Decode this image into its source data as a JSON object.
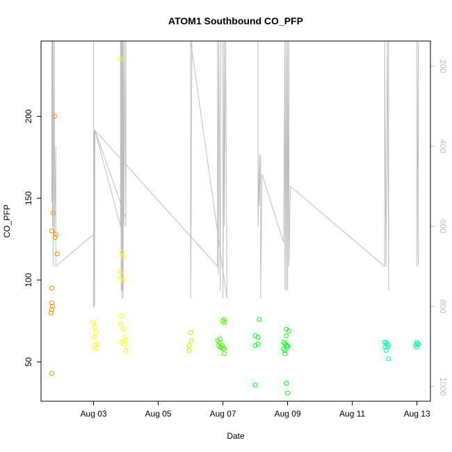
{
  "chart_data": {
    "type": "scatter",
    "title": "ATOM1 Southbound CO_PFP",
    "xlabel": "Date",
    "ylabel": "CO_PFP",
    "xlim": [
      "2016-08-01T09:00",
      "2016-08-13T10:00"
    ],
    "ylim": [
      26,
      246
    ],
    "x_ticks": [
      {
        "date": "2016-08-03T00:00",
        "label": "Aug 03"
      },
      {
        "date": "2016-08-05T00:00",
        "label": "Aug 05"
      },
      {
        "date": "2016-08-07T00:00",
        "label": "Aug 07"
      },
      {
        "date": "2016-08-09T00:00",
        "label": "Aug 09"
      },
      {
        "date": "2016-08-11T00:00",
        "label": "Aug 11"
      },
      {
        "date": "2016-08-13T00:00",
        "label": "Aug 13"
      }
    ],
    "y_ticks": [
      50,
      100,
      150,
      200
    ],
    "y2_ticks": [
      200,
      400,
      600,
      800,
      1000
    ],
    "y2lim": [
      1037,
      137
    ],
    "grid": false,
    "series": [
      {
        "color": "#ff8c00",
        "points": [
          {
            "x": "2016-08-01T19:00",
            "y": 200
          },
          {
            "x": "2016-08-01T18:00",
            "y": 141
          },
          {
            "x": "2016-08-01T17:00",
            "y": 130
          },
          {
            "x": "2016-08-01T20:00",
            "y": 128
          },
          {
            "x": "2016-08-01T19:30",
            "y": 126
          },
          {
            "x": "2016-08-01T21:00",
            "y": 116
          },
          {
            "x": "2016-08-01T17:00",
            "y": 95
          },
          {
            "x": "2016-08-01T17:00",
            "y": 86
          },
          {
            "x": "2016-08-01T17:30",
            "y": 84
          },
          {
            "x": "2016-08-01T17:00",
            "y": 82
          },
          {
            "x": "2016-08-01T16:30",
            "y": 80
          },
          {
            "x": "2016-08-01T17:00",
            "y": 43
          }
        ]
      },
      {
        "color": "#ffff00",
        "points": [
          {
            "x": "2016-08-03T00:00",
            "y": 74
          },
          {
            "x": "2016-08-03T01:00",
            "y": 71
          },
          {
            "x": "2016-08-03T02:00",
            "y": 68
          },
          {
            "x": "2016-08-03T00:30",
            "y": 65
          },
          {
            "x": "2016-08-03T03:00",
            "y": 61
          },
          {
            "x": "2016-08-03T01:00",
            "y": 60
          },
          {
            "x": "2016-08-03T02:00",
            "y": 58
          },
          {
            "x": "2016-08-03T20:00",
            "y": 235
          },
          {
            "x": "2016-08-03T21:00",
            "y": 117
          },
          {
            "x": "2016-08-03T22:00",
            "y": 114
          },
          {
            "x": "2016-08-03T20:00",
            "y": 105
          },
          {
            "x": "2016-08-03T20:00",
            "y": 101
          },
          {
            "x": "2016-08-03T22:00",
            "y": 100
          },
          {
            "x": "2016-08-03T21:00",
            "y": 78
          },
          {
            "x": "2016-08-03T20:00",
            "y": 73
          },
          {
            "x": "2016-08-03T22:00",
            "y": 70
          },
          {
            "x": "2016-08-03T23:00",
            "y": 65
          },
          {
            "x": "2016-08-04T00:00",
            "y": 63
          },
          {
            "x": "2016-08-03T21:00",
            "y": 62
          },
          {
            "x": "2016-08-03T23:00",
            "y": 61
          },
          {
            "x": "2016-08-04T00:00",
            "y": 57
          }
        ]
      },
      {
        "color": "#aaff00",
        "points": [
          {
            "x": "2016-08-06T00:00",
            "y": 68
          },
          {
            "x": "2016-08-06T00:30",
            "y": 63
          },
          {
            "x": "2016-08-05T23:00",
            "y": 60
          },
          {
            "x": "2016-08-05T23:00",
            "y": 57
          }
        ]
      },
      {
        "color": "#44ff00",
        "points": [
          {
            "x": "2016-08-06T20:00",
            "y": 63
          },
          {
            "x": "2016-08-06T21:00",
            "y": 62
          },
          {
            "x": "2016-08-06T22:00",
            "y": 64
          },
          {
            "x": "2016-08-07T00:00",
            "y": 75
          },
          {
            "x": "2016-08-07T01:00",
            "y": 76
          },
          {
            "x": "2016-08-07T01:00",
            "y": 74
          },
          {
            "x": "2016-08-06T21:00",
            "y": 60
          },
          {
            "x": "2016-08-06T22:00",
            "y": 59
          },
          {
            "x": "2016-08-06T23:00",
            "y": 59
          },
          {
            "x": "2016-08-07T00:00",
            "y": 58
          },
          {
            "x": "2016-08-07T01:00",
            "y": 58
          },
          {
            "x": "2016-08-06T23:30",
            "y": 60
          },
          {
            "x": "2016-08-07T01:00",
            "y": 55
          }
        ]
      },
      {
        "color": "#00ff22",
        "points": [
          {
            "x": "2016-08-08T03:00",
            "y": 76
          },
          {
            "x": "2016-08-08T00:00",
            "y": 66
          },
          {
            "x": "2016-08-08T02:00",
            "y": 65
          },
          {
            "x": "2016-08-08T02:00",
            "y": 61
          },
          {
            "x": "2016-08-08T00:00",
            "y": 60
          },
          {
            "x": "2016-08-08T00:00",
            "y": 36
          },
          {
            "x": "2016-08-08T21:00",
            "y": 62
          },
          {
            "x": "2016-08-08T22:00",
            "y": 61
          },
          {
            "x": "2016-08-08T23:00",
            "y": 60
          },
          {
            "x": "2016-08-09T00:00",
            "y": 59
          },
          {
            "x": "2016-08-08T21:00",
            "y": 58
          },
          {
            "x": "2016-08-08T22:00",
            "y": 57
          },
          {
            "x": "2016-08-08T22:00",
            "y": 55
          },
          {
            "x": "2016-08-08T23:00",
            "y": 70
          },
          {
            "x": "2016-08-09T01:00",
            "y": 69
          },
          {
            "x": "2016-08-08T23:00",
            "y": 66
          },
          {
            "x": "2016-08-09T00:00",
            "y": 60
          },
          {
            "x": "2016-08-08T23:00",
            "y": 37
          },
          {
            "x": "2016-08-09T00:00",
            "y": 31
          }
        ]
      },
      {
        "color": "#00ffaa",
        "points": [
          {
            "x": "2016-08-12T00:00",
            "y": 62
          },
          {
            "x": "2016-08-12T01:00",
            "y": 62
          },
          {
            "x": "2016-08-12T02:00",
            "y": 61
          },
          {
            "x": "2016-08-12T00:00",
            "y": 59
          },
          {
            "x": "2016-08-12T02:00",
            "y": 59
          },
          {
            "x": "2016-08-12T03:00",
            "y": 60
          },
          {
            "x": "2016-08-12T01:00",
            "y": 57
          },
          {
            "x": "2016-08-12T03:00",
            "y": 52
          },
          {
            "x": "2016-08-13T00:00",
            "y": 62
          },
          {
            "x": "2016-08-13T00:00",
            "y": 61
          },
          {
            "x": "2016-08-12T23:00",
            "y": 60
          },
          {
            "x": "2016-08-13T01:00",
            "y": 61
          },
          {
            "x": "2016-08-13T00:00",
            "y": 59
          }
        ]
      }
    ],
    "secondary_line": {
      "color": "#bebebe",
      "points": [
        {
          "x": "2016-08-01T17:00",
          "y2": 137
        },
        {
          "x": "2016-08-01T17:00",
          "y2": 540
        },
        {
          "x": "2016-08-01T17:30",
          "y2": 137
        },
        {
          "x": "2016-08-01T17:30",
          "y2": 600
        },
        {
          "x": "2016-08-01T18:00",
          "y2": 137
        },
        {
          "x": "2016-08-01T18:00",
          "y2": 700
        },
        {
          "x": "2016-08-01T19:00",
          "y2": 137
        },
        {
          "x": "2016-08-01T19:00",
          "y2": 620
        },
        {
          "x": "2016-08-01T20:00",
          "y2": 400
        },
        {
          "x": "2016-08-01T20:00",
          "y2": 700
        },
        {
          "x": "2016-08-03T00:00",
          "y2": 620
        },
        {
          "x": "2016-08-03T00:00",
          "y2": 137
        },
        {
          "x": "2016-08-03T00:00",
          "y2": 800
        },
        {
          "x": "2016-08-03T00:30",
          "y2": 800
        },
        {
          "x": "2016-08-03T00:30",
          "y2": 360
        },
        {
          "x": "2016-08-03T00:45",
          "y2": 800
        },
        {
          "x": "2016-08-03T01:00",
          "y2": 360
        },
        {
          "x": "2016-08-03T20:00",
          "y2": 600
        },
        {
          "x": "2016-08-03T20:00",
          "y2": 137
        },
        {
          "x": "2016-08-03T20:30",
          "y2": 760
        },
        {
          "x": "2016-08-03T20:30",
          "y2": 137
        },
        {
          "x": "2016-08-03T21:00",
          "y2": 780
        },
        {
          "x": "2016-08-03T21:00",
          "y2": 137
        },
        {
          "x": "2016-08-03T21:30",
          "y2": 760
        },
        {
          "x": "2016-08-03T21:30",
          "y2": 137
        },
        {
          "x": "2016-08-03T22:00",
          "y2": 780
        },
        {
          "x": "2016-08-03T22:00",
          "y2": 137
        },
        {
          "x": "2016-08-03T22:30",
          "y2": 600
        },
        {
          "x": "2016-08-03T23:00",
          "y2": 137
        },
        {
          "x": "2016-08-04T00:00",
          "y2": 600
        },
        {
          "x": "2016-08-04T00:00",
          "y2": 137
        },
        {
          "x": "2016-08-04T00:00",
          "y2": 580
        },
        {
          "x": "2016-08-03T01:00",
          "y2": 360
        },
        {
          "x": "2016-08-06T20:00",
          "y2": 700
        },
        {
          "x": "2016-08-06T20:00",
          "y2": 137
        },
        {
          "x": "2016-08-06T20:30",
          "y2": 720
        },
        {
          "x": "2016-08-06T21:00",
          "y2": 137
        },
        {
          "x": "2016-08-06T22:00",
          "y2": 760
        },
        {
          "x": "2016-08-06T22:30",
          "y2": 137
        },
        {
          "x": "2016-08-06T23:00",
          "y2": 137
        },
        {
          "x": "2016-08-07T00:00",
          "y2": 137
        },
        {
          "x": "2016-08-07T00:00",
          "y2": 780
        },
        {
          "x": "2016-08-07T01:00",
          "y2": 137
        },
        {
          "x": "2016-08-07T01:00",
          "y2": 600
        },
        {
          "x": "2016-08-07T02:00",
          "y2": 137
        },
        {
          "x": "2016-08-07T03:00",
          "y2": 780
        },
        {
          "x": "2016-08-06T00:00",
          "y2": 137
        },
        {
          "x": "2016-08-06T00:00",
          "y2": 780
        },
        {
          "x": "2016-08-06T00:30",
          "y2": 500
        },
        {
          "x": "2016-08-06T00:30",
          "y2": 420
        },
        {
          "x": "2016-08-06T01:00",
          "y2": 137
        },
        {
          "x": "2016-08-08T02:00",
          "y2": 137
        },
        {
          "x": "2016-08-08T02:00",
          "y2": 600
        },
        {
          "x": "2016-08-08T03:00",
          "y2": 420
        },
        {
          "x": "2016-08-08T03:00",
          "y2": 550
        },
        {
          "x": "2016-08-08T04:00",
          "y2": 420
        },
        {
          "x": "2016-08-08T04:00",
          "y2": 780
        },
        {
          "x": "2016-08-08T05:00",
          "y2": 470
        },
        {
          "x": "2016-08-08T21:00",
          "y2": 640
        },
        {
          "x": "2016-08-08T22:00",
          "y2": 137
        },
        {
          "x": "2016-08-08T22:00",
          "y2": 760
        },
        {
          "x": "2016-08-08T23:00",
          "y2": 137
        },
        {
          "x": "2016-08-08T23:00",
          "y2": 760
        },
        {
          "x": "2016-08-09T00:00",
          "y2": 137
        },
        {
          "x": "2016-08-09T00:00",
          "y2": 760
        },
        {
          "x": "2016-08-09T01:00",
          "y2": 137
        },
        {
          "x": "2016-08-09T01:00",
          "y2": 700
        },
        {
          "x": "2016-08-09T02:00",
          "y2": 500
        },
        {
          "x": "2016-08-12T00:00",
          "y2": 700
        },
        {
          "x": "2016-08-12T00:00",
          "y2": 137
        },
        {
          "x": "2016-08-12T01:00",
          "y2": 700
        },
        {
          "x": "2016-08-12T02:00",
          "y2": 137
        },
        {
          "x": "2016-08-12T03:00",
          "y2": 760
        },
        {
          "x": "2016-08-12T03:00",
          "y2": 137
        },
        {
          "x": "2016-08-13T00:00",
          "y2": 137
        },
        {
          "x": "2016-08-13T00:00",
          "y2": 700
        },
        {
          "x": "2016-08-13T01:00",
          "y2": 137
        },
        {
          "x": "2016-08-13T01:00",
          "y2": 700
        }
      ]
    }
  }
}
